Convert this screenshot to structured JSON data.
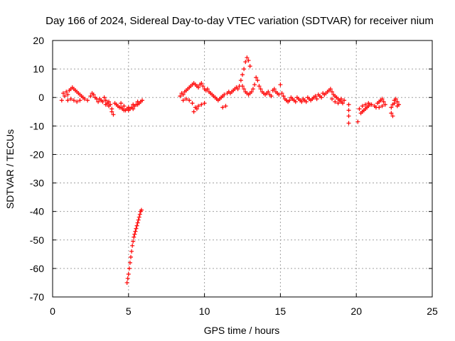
{
  "chart_data": {
    "type": "scatter",
    "title": "Day 166 of 2024, Sidereal Day-to-day VTEC variation (SDTVAR) for receiver nium",
    "xlabel": "GPS time / hours",
    "ylabel": "SDTVAR / TECUs",
    "xlim": [
      0,
      25
    ],
    "ylim": [
      -70,
      20
    ],
    "xticks": [
      0,
      5,
      10,
      15,
      20,
      25
    ],
    "yticks": [
      20,
      10,
      0,
      -10,
      -20,
      -30,
      -40,
      -50,
      -60,
      -70
    ],
    "grid": true,
    "marker": "plus",
    "color": "#ff0000",
    "series": [
      {
        "name": "SDTVAR",
        "points": [
          [
            0.6,
            -1.0
          ],
          [
            0.7,
            1.5
          ],
          [
            0.8,
            0.5
          ],
          [
            0.9,
            2.0
          ],
          [
            1.0,
            1.0
          ],
          [
            1.0,
            -1.0
          ],
          [
            1.1,
            2.5
          ],
          [
            1.2,
            3.0
          ],
          [
            1.3,
            3.5
          ],
          [
            1.4,
            3.0
          ],
          [
            1.5,
            2.5
          ],
          [
            1.6,
            2.0
          ],
          [
            1.7,
            1.5
          ],
          [
            1.8,
            1.0
          ],
          [
            1.9,
            0.5
          ],
          [
            2.0,
            0.0
          ],
          [
            1.2,
            -0.5
          ],
          [
            1.4,
            -1.0
          ],
          [
            1.6,
            -1.5
          ],
          [
            1.8,
            -1.0
          ],
          [
            2.1,
            -0.5
          ],
          [
            2.3,
            -1.0
          ],
          [
            2.5,
            0.5
          ],
          [
            2.6,
            1.5
          ],
          [
            2.7,
            1.0
          ],
          [
            2.8,
            0.0
          ],
          [
            2.9,
            -0.5
          ],
          [
            3.0,
            -1.5
          ],
          [
            3.1,
            -0.5
          ],
          [
            3.2,
            -1.0
          ],
          [
            3.3,
            -1.5
          ],
          [
            3.4,
            0.0
          ],
          [
            3.5,
            -1.0
          ],
          [
            3.6,
            -2.0
          ],
          [
            3.7,
            -3.0
          ],
          [
            3.8,
            -2.5
          ],
          [
            3.9,
            -4.0
          ],
          [
            4.0,
            -6.0
          ],
          [
            3.9,
            -5.0
          ],
          [
            3.7,
            -1.5
          ],
          [
            3.5,
            -2.5
          ],
          [
            4.1,
            -2.0
          ],
          [
            4.2,
            -2.5
          ],
          [
            4.3,
            -3.0
          ],
          [
            4.4,
            -3.5
          ],
          [
            4.5,
            -3.5
          ],
          [
            4.6,
            -4.0
          ],
          [
            4.7,
            -4.5
          ],
          [
            4.8,
            -4.5
          ],
          [
            4.9,
            -4.0
          ],
          [
            5.0,
            -4.5
          ],
          [
            5.1,
            -4.0
          ],
          [
            5.2,
            -3.5
          ],
          [
            5.3,
            -4.0
          ],
          [
            5.4,
            -3.0
          ],
          [
            5.5,
            -2.5
          ],
          [
            5.6,
            -2.5
          ],
          [
            5.7,
            -2.0
          ],
          [
            5.8,
            -1.5
          ],
          [
            5.9,
            -1.0
          ],
          [
            4.5,
            -2.0
          ],
          [
            4.7,
            -3.0
          ],
          [
            5.0,
            -3.5
          ],
          [
            5.3,
            -2.5
          ],
          [
            5.6,
            -1.5
          ],
          [
            4.9,
            -65.0
          ],
          [
            5.0,
            -62.0
          ],
          [
            5.05,
            -60.0
          ],
          [
            5.1,
            -58.0
          ],
          [
            5.15,
            -56.0
          ],
          [
            5.2,
            -54.0
          ],
          [
            5.25,
            -52.0
          ],
          [
            5.3,
            -50.5
          ],
          [
            5.35,
            -49.0
          ],
          [
            5.4,
            -48.0
          ],
          [
            5.45,
            -47.0
          ],
          [
            5.5,
            -46.0
          ],
          [
            5.55,
            -45.0
          ],
          [
            5.6,
            -44.0
          ],
          [
            5.65,
            -43.0
          ],
          [
            5.7,
            -42.0
          ],
          [
            5.75,
            -41.0
          ],
          [
            5.8,
            -40.0
          ],
          [
            5.85,
            -39.5
          ],
          [
            4.95,
            -63.5
          ],
          [
            8.4,
            0.5
          ],
          [
            8.5,
            1.5
          ],
          [
            8.6,
            1.0
          ],
          [
            8.7,
            2.0
          ],
          [
            8.8,
            2.5
          ],
          [
            8.9,
            3.0
          ],
          [
            9.0,
            3.5
          ],
          [
            9.1,
            4.0
          ],
          [
            9.2,
            4.5
          ],
          [
            9.3,
            5.0
          ],
          [
            9.4,
            4.5
          ],
          [
            9.5,
            4.0
          ],
          [
            9.6,
            3.5
          ],
          [
            9.7,
            4.5
          ],
          [
            9.8,
            5.0
          ],
          [
            9.9,
            4.0
          ],
          [
            10.0,
            3.0
          ],
          [
            10.1,
            2.5
          ],
          [
            10.2,
            3.0
          ],
          [
            10.3,
            2.0
          ],
          [
            10.4,
            1.5
          ],
          [
            10.5,
            1.0
          ],
          [
            10.6,
            0.5
          ],
          [
            10.7,
            0.0
          ],
          [
            10.8,
            -0.5
          ],
          [
            10.9,
            -1.0
          ],
          [
            11.0,
            -0.5
          ],
          [
            11.1,
            0.0
          ],
          [
            11.2,
            0.5
          ],
          [
            11.3,
            1.0
          ],
          [
            8.6,
            -1.0
          ],
          [
            8.8,
            -0.5
          ],
          [
            9.0,
            -1.0
          ],
          [
            9.2,
            -2.0
          ],
          [
            9.4,
            -3.5
          ],
          [
            9.5,
            -4.0
          ],
          [
            9.6,
            -3.0
          ],
          [
            9.8,
            -2.5
          ],
          [
            10.0,
            -2.0
          ],
          [
            9.3,
            -5.0
          ],
          [
            11.2,
            -3.5
          ],
          [
            11.4,
            -3.0
          ],
          [
            11.5,
            1.5
          ],
          [
            11.6,
            2.0
          ],
          [
            11.7,
            1.5
          ],
          [
            11.8,
            2.0
          ],
          [
            11.9,
            2.5
          ],
          [
            12.0,
            3.0
          ],
          [
            12.1,
            3.5
          ],
          [
            12.2,
            3.0
          ],
          [
            12.3,
            4.0
          ],
          [
            12.4,
            6.0
          ],
          [
            12.5,
            8.0
          ],
          [
            12.6,
            10.0
          ],
          [
            12.7,
            12.5
          ],
          [
            12.8,
            14.0
          ],
          [
            12.9,
            13.0
          ],
          [
            13.0,
            11.0
          ],
          [
            12.5,
            4.0
          ],
          [
            12.6,
            3.0
          ],
          [
            12.7,
            2.0
          ],
          [
            12.8,
            1.5
          ],
          [
            12.9,
            1.0
          ],
          [
            13.0,
            1.5
          ],
          [
            13.1,
            2.0
          ],
          [
            13.2,
            3.0
          ],
          [
            13.3,
            4.5
          ],
          [
            13.4,
            7.0
          ],
          [
            13.5,
            6.0
          ],
          [
            13.6,
            4.0
          ],
          [
            13.7,
            3.0
          ],
          [
            13.8,
            2.0
          ],
          [
            13.9,
            1.5
          ],
          [
            14.0,
            1.0
          ],
          [
            14.1,
            1.5
          ],
          [
            14.2,
            2.0
          ],
          [
            14.3,
            1.0
          ],
          [
            14.4,
            0.5
          ],
          [
            14.5,
            2.5
          ],
          [
            14.6,
            3.0
          ],
          [
            14.7,
            2.0
          ],
          [
            14.8,
            1.5
          ],
          [
            14.9,
            1.0
          ],
          [
            15.0,
            4.5
          ],
          [
            15.1,
            1.5
          ],
          [
            15.2,
            0.5
          ],
          [
            15.3,
            -0.5
          ],
          [
            15.4,
            -1.0
          ],
          [
            15.5,
            -1.5
          ],
          [
            15.6,
            -1.0
          ],
          [
            15.7,
            0.0
          ],
          [
            15.8,
            -0.5
          ],
          [
            15.9,
            -1.0
          ],
          [
            16.0,
            -1.5
          ],
          [
            16.1,
            0.0
          ],
          [
            16.2,
            -0.5
          ],
          [
            16.3,
            -1.0
          ],
          [
            16.4,
            -1.5
          ],
          [
            16.5,
            -0.5
          ],
          [
            16.6,
            -1.0
          ],
          [
            16.7,
            -1.5
          ],
          [
            16.8,
            0.0
          ],
          [
            16.9,
            -0.5
          ],
          [
            17.0,
            -1.0
          ],
          [
            17.1,
            -0.5
          ],
          [
            17.2,
            0.0
          ],
          [
            17.3,
            0.5
          ],
          [
            17.4,
            -0.5
          ],
          [
            17.5,
            1.0
          ],
          [
            17.6,
            0.5
          ],
          [
            17.7,
            0.0
          ],
          [
            17.8,
            1.5
          ],
          [
            17.9,
            1.0
          ],
          [
            18.0,
            1.5
          ],
          [
            18.1,
            2.0
          ],
          [
            18.2,
            2.5
          ],
          [
            18.3,
            3.0
          ],
          [
            18.4,
            2.0
          ],
          [
            18.5,
            1.0
          ],
          [
            18.6,
            0.5
          ],
          [
            18.7,
            0.0
          ],
          [
            18.8,
            -0.5
          ],
          [
            18.9,
            -1.0
          ],
          [
            19.0,
            -1.5
          ],
          [
            19.1,
            -2.0
          ],
          [
            19.2,
            -1.0
          ],
          [
            18.4,
            -0.5
          ],
          [
            18.6,
            -1.5
          ],
          [
            18.8,
            -2.0
          ],
          [
            19.0,
            -0.5
          ],
          [
            19.5,
            -2.5
          ],
          [
            19.5,
            -4.5
          ],
          [
            19.5,
            -6.5
          ],
          [
            19.5,
            -9.0
          ],
          [
            20.1,
            -8.5
          ],
          [
            20.2,
            -4.0
          ],
          [
            20.3,
            -5.5
          ],
          [
            20.4,
            -5.0
          ],
          [
            20.5,
            -4.5
          ],
          [
            20.6,
            -4.0
          ],
          [
            20.7,
            -3.5
          ],
          [
            20.8,
            -3.0
          ],
          [
            20.9,
            -2.5
          ],
          [
            21.0,
            -2.5
          ],
          [
            20.4,
            -3.0
          ],
          [
            20.6,
            -2.5
          ],
          [
            20.8,
            -2.0
          ],
          [
            21.2,
            -3.0
          ],
          [
            21.3,
            -3.5
          ],
          [
            21.4,
            -2.0
          ],
          [
            21.5,
            -1.5
          ],
          [
            21.6,
            -1.0
          ],
          [
            21.7,
            -0.5
          ],
          [
            21.8,
            -1.5
          ],
          [
            21.5,
            -3.5
          ],
          [
            21.7,
            -3.0
          ],
          [
            21.9,
            -2.5
          ],
          [
            22.3,
            -5.5
          ],
          [
            22.4,
            -6.5
          ],
          [
            22.3,
            -3.5
          ],
          [
            22.4,
            -2.5
          ],
          [
            22.5,
            -1.0
          ],
          [
            22.6,
            -0.5
          ],
          [
            22.7,
            -1.5
          ],
          [
            22.8,
            -2.5
          ],
          [
            22.5,
            -2.0
          ],
          [
            22.7,
            -3.0
          ]
        ]
      }
    ]
  }
}
